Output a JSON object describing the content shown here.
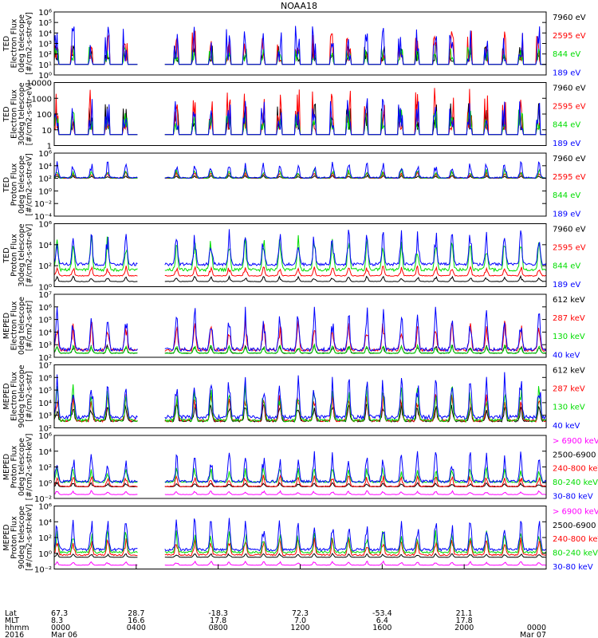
{
  "title": "NOAA18",
  "colors": {
    "black": "#000000",
    "red": "#ff0000",
    "green": "#00dd00",
    "blue": "#0000ff",
    "magenta": "#ff00ff"
  },
  "chart_data": [
    {
      "type": "line",
      "ylabel": [
        "TED",
        "Electron Flux",
        "0deg telescope",
        "[#/cm2-s-str-eV]"
      ],
      "ylim": [
        1,
        1000000
      ],
      "ylog": true,
      "yticks": [
        {
          "v": 1,
          "t": "10⁰"
        },
        {
          "v": 10,
          "t": "10¹"
        },
        {
          "v": 100,
          "t": "10²"
        },
        {
          "v": 1000,
          "t": "10³"
        },
        {
          "v": 10000,
          "t": "10⁴"
        },
        {
          "v": 100000,
          "t": "10⁵"
        },
        {
          "v": 1000000,
          "t": "10⁶"
        }
      ],
      "series": [
        {
          "name": "7960 eV",
          "color": "#000000",
          "baseline": 20,
          "peak": 1000,
          "style": "spikes"
        },
        {
          "name": "2595 eV",
          "color": "#ff0000",
          "baseline": 20,
          "peak": 20000,
          "style": "spikes"
        },
        {
          "name": "844 eV",
          "color": "#00dd00",
          "baseline": 20,
          "peak": 500,
          "style": "spikes"
        },
        {
          "name": "189 eV",
          "color": "#0000ff",
          "baseline": 20,
          "peak": 50000,
          "style": "spikes"
        }
      ]
    },
    {
      "type": "line",
      "ylabel": [
        "TED",
        "Electron Flux",
        "30deg telescope",
        "[#/cm2-s-str-eV]"
      ],
      "ylim": [
        1,
        10000
      ],
      "ylog": true,
      "yticks": [
        {
          "v": 1,
          "t": "1"
        },
        {
          "v": 10,
          "t": "10"
        },
        {
          "v": 100,
          "t": "100"
        },
        {
          "v": 1000,
          "t": "1000"
        },
        {
          "v": 10000,
          "t": "10000"
        }
      ],
      "series": [
        {
          "name": "7960 eV",
          "color": "#000000",
          "baseline": 10,
          "peak": 500,
          "style": "spikes"
        },
        {
          "name": "2595 eV",
          "color": "#ff0000",
          "baseline": 10,
          "peak": 5000,
          "style": "spikes"
        },
        {
          "name": "844 eV",
          "color": "#00dd00",
          "baseline": 10,
          "peak": 200,
          "style": "spikes"
        },
        {
          "name": "189 eV",
          "color": "#0000ff",
          "baseline": 10,
          "peak": 1000,
          "style": "spikes"
        }
      ]
    },
    {
      "type": "line",
      "ylabel": [
        "TED",
        "Proton Flux",
        "0deg telescope",
        "[#/cm2-s-str-eV]"
      ],
      "ylim": [
        0.0001,
        1000000
      ],
      "ylog": true,
      "yticks": [
        {
          "v": 0.0001,
          "t": "10⁻⁴"
        },
        {
          "v": 0.01,
          "t": "10⁻²"
        },
        {
          "v": 1,
          "t": "10⁰"
        },
        {
          "v": 100,
          "t": "10²"
        },
        {
          "v": 10000,
          "t": "10⁴"
        },
        {
          "v": 1000000,
          "t": "10⁶"
        }
      ],
      "series": [
        {
          "name": "7960 eV",
          "color": "#000000",
          "baseline": 100,
          "peak": 300,
          "style": "band"
        },
        {
          "name": "2595 eV",
          "color": "#ff0000",
          "baseline": 100,
          "peak": 1000,
          "style": "band"
        },
        {
          "name": "844 eV",
          "color": "#00dd00",
          "baseline": 100,
          "peak": 3000,
          "style": "band"
        },
        {
          "name": "189 eV",
          "color": "#0000ff",
          "baseline": 100,
          "peak": 50000,
          "style": "band"
        }
      ]
    },
    {
      "type": "line",
      "ylabel": [
        "TED",
        "Proton Flux",
        "30deg telescope",
        "[#/cm2-s-str-eV]"
      ],
      "ylim": [
        1,
        1000000
      ],
      "ylog": true,
      "yticks": [
        {
          "v": 1,
          "t": "10⁰"
        },
        {
          "v": 100,
          "t": "10²"
        },
        {
          "v": 10000,
          "t": "10⁴"
        },
        {
          "v": 1000000,
          "t": "10⁶"
        }
      ],
      "series": [
        {
          "name": "7960 eV",
          "color": "#000000",
          "baseline": 3,
          "peak": 10,
          "style": "band"
        },
        {
          "name": "2595 eV",
          "color": "#ff0000",
          "baseline": 10,
          "peak": 100,
          "style": "band"
        },
        {
          "name": "844 eV",
          "color": "#00dd00",
          "baseline": 30,
          "peak": 100000,
          "style": "band"
        },
        {
          "name": "189 eV",
          "color": "#0000ff",
          "baseline": 100,
          "peak": 300000,
          "style": "band"
        }
      ]
    },
    {
      "type": "line",
      "ylabel": [
        "MEPED",
        "Electron Flux",
        "0deg telescope",
        "[#/cm2-s-str]"
      ],
      "ylim": [
        100,
        10000000
      ],
      "ylog": true,
      "yticks": [
        {
          "v": 100,
          "t": "10²"
        },
        {
          "v": 1000,
          "t": "10³"
        },
        {
          "v": 10000,
          "t": "10⁴"
        },
        {
          "v": 100000,
          "t": "10⁵"
        },
        {
          "v": 1000000,
          "t": "10⁶"
        },
        {
          "v": 10000000,
          "t": "10⁷"
        }
      ],
      "series": [
        {
          "name": "612 keV",
          "color": "#000000",
          "baseline": 200,
          "peak": 1000,
          "style": "band"
        },
        {
          "name": "287 keV",
          "color": "#ff0000",
          "baseline": 300,
          "peak": 100000,
          "style": "band"
        },
        {
          "name": "130 keV",
          "color": "#00dd00",
          "baseline": 200,
          "peak": 1000,
          "style": "band"
        },
        {
          "name": "40 keV",
          "color": "#0000ff",
          "baseline": 300,
          "peak": 1000000,
          "style": "band"
        }
      ]
    },
    {
      "type": "line",
      "ylabel": [
        "MEPED",
        "Electron Flux",
        "90deg telescope",
        "[#/cm2-s-str]"
      ],
      "ylim": [
        100,
        10000000
      ],
      "ylog": true,
      "yticks": [
        {
          "v": 100,
          "t": "10²"
        },
        {
          "v": 1000,
          "t": "10³"
        },
        {
          "v": 10000,
          "t": "10⁴"
        },
        {
          "v": 100000,
          "t": "10⁵"
        },
        {
          "v": 1000000,
          "t": "10⁶"
        },
        {
          "v": 10000000,
          "t": "10⁷"
        }
      ],
      "series": [
        {
          "name": "612 keV",
          "color": "#000000",
          "baseline": 300,
          "peak": 10000,
          "style": "band"
        },
        {
          "name": "287 keV",
          "color": "#ff0000",
          "baseline": 300,
          "peak": 100000,
          "style": "band"
        },
        {
          "name": "130 keV",
          "color": "#00dd00",
          "baseline": 300,
          "peak": 300000,
          "style": "band"
        },
        {
          "name": "40 keV",
          "color": "#0000ff",
          "baseline": 500,
          "peak": 3000000,
          "style": "band"
        }
      ]
    },
    {
      "type": "line",
      "ylabel": [
        "MEPED",
        "Proton Flux",
        "0deg telescope",
        "[#/cm2-s-str-keV]"
      ],
      "ylim": [
        0.01,
        1000000
      ],
      "ylog": true,
      "yticks": [
        {
          "v": 0.01,
          "t": "10⁻²"
        },
        {
          "v": 1,
          "t": "10⁰"
        },
        {
          "v": 100,
          "t": "10²"
        },
        {
          "v": 10000,
          "t": "10⁴"
        },
        {
          "v": 1000000,
          "t": "10⁶"
        }
      ],
      "series": [
        {
          "name": "> 6900 keV",
          "color": "#ff00ff",
          "baseline": 0.03,
          "peak": 0.1,
          "style": "band"
        },
        {
          "name": "2500-6900",
          "color": "#000000",
          "baseline": 0.3,
          "peak": 1,
          "style": "band"
        },
        {
          "name": "240-800 keV",
          "color": "#ff0000",
          "baseline": 0.3,
          "peak": 10,
          "style": "band"
        },
        {
          "name": "80-240 keV",
          "color": "#00dd00",
          "baseline": 1,
          "peak": 100,
          "style": "band"
        },
        {
          "name": "30-80 keV",
          "color": "#0000ff",
          "baseline": 1,
          "peak": 10000,
          "style": "band"
        }
      ]
    },
    {
      "type": "line",
      "ylabel": [
        "MEPED",
        "Proton Flux",
        "90deg telescope",
        "[#/cm2-s-str-keV]"
      ],
      "ylim": [
        0.01,
        1000000
      ],
      "ylog": true,
      "yticks": [
        {
          "v": 0.01,
          "t": "10⁻²"
        },
        {
          "v": 1,
          "t": "10⁰"
        },
        {
          "v": 100,
          "t": "10²"
        },
        {
          "v": 10000,
          "t": "10⁴"
        },
        {
          "v": 1000000,
          "t": "10⁶"
        }
      ],
      "series": [
        {
          "name": "> 6900 keV",
          "color": "#ff00ff",
          "baseline": 0.03,
          "peak": 0.1,
          "style": "band"
        },
        {
          "name": "2500-6900",
          "color": "#000000",
          "baseline": 0.3,
          "peak": 1,
          "style": "band"
        },
        {
          "name": "240-800 keV",
          "color": "#ff0000",
          "baseline": 0.5,
          "peak": 100,
          "style": "band"
        },
        {
          "name": "80-240 keV",
          "color": "#00dd00",
          "baseline": 1,
          "peak": 1000,
          "style": "band"
        },
        {
          "name": "30-80 keV",
          "color": "#0000ff",
          "baseline": 2,
          "peak": 30000,
          "style": "band"
        }
      ]
    }
  ],
  "xaxis": {
    "row_labels": [
      "Lat",
      "MLT",
      "hhmm",
      "2016"
    ],
    "ticks": [
      {
        "t": 0,
        "lat": "67.3",
        "mlt": "8.3",
        "hhmm": "0000",
        "date": "Mar 06"
      },
      {
        "t": 4,
        "lat": "28.7",
        "mlt": "16.6",
        "hhmm": "0400",
        "date": ""
      },
      {
        "t": 8,
        "lat": "-18.3",
        "mlt": "17.8",
        "hhmm": "0800",
        "date": ""
      },
      {
        "t": 12,
        "lat": "72.3",
        "mlt": "7.0",
        "hhmm": "1200",
        "date": ""
      },
      {
        "t": 16,
        "lat": "-53.4",
        "mlt": "6.4",
        "hhmm": "1600",
        "date": ""
      },
      {
        "t": 20,
        "lat": "21.1",
        "mlt": "17.8",
        "hhmm": "2000",
        "date": ""
      },
      {
        "t": 24,
        "lat": "",
        "mlt": "",
        "hhmm": "0000",
        "date": "Mar 07"
      }
    ],
    "range_hours": [
      0,
      24
    ],
    "data_gap_hours": [
      4.1,
      5.4
    ]
  }
}
